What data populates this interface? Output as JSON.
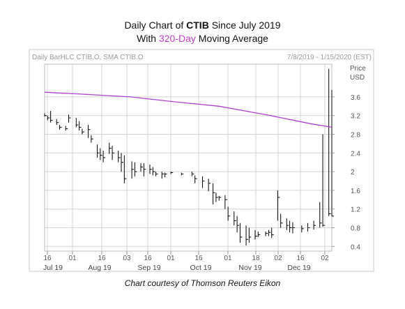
{
  "title": {
    "line1_prefix": "Daily Chart of",
    "line1_ticker": "CTIB",
    "line1_suffix": "Since July 2019",
    "line2_prefix": "With",
    "line2_highlight": "320-Day",
    "line2_suffix": "Moving Average"
  },
  "chart_header": {
    "left": "Daily BarHLC CTIB.O, SMA CTIB.O",
    "right": "7/8/2019 - 1/15/2020 (EST)"
  },
  "caption": "Chart courtesy of Thomson Reuters Eikon",
  "colors": {
    "sma": "#b040d0",
    "bars": "#000000",
    "grid": "#d4d4d4",
    "frame": "#c8c8c8"
  },
  "chart_data": {
    "type": "bar",
    "title": "Daily Chart of CTIB Since July 2019",
    "subtitle": "With 320-Day Moving Average",
    "ylabel": "Price USD",
    "ylim": [
      0.3,
      4.3
    ],
    "yticks": [
      "0.4",
      "0.8",
      "1.2",
      "1.6",
      "2",
      "2.4",
      "2.8",
      "3.2",
      "3.6"
    ],
    "x_day_ticks": [
      "16",
      "01",
      "16",
      "03",
      "16",
      "01",
      "16",
      "01",
      "18",
      "02",
      "16",
      "02"
    ],
    "x_month_labels": [
      "Jul 19",
      "Aug 19",
      "Sep 19",
      "Oct 19",
      "Nov 19",
      "Dec 19"
    ],
    "x_range": [
      "2019-07-08",
      "2020-01-15"
    ],
    "grid": true,
    "series": [
      {
        "name": "CTIB.O",
        "kind": "ohlc",
        "x": [
          "2019-07-08",
          "2019-07-10",
          "2019-07-12",
          "2019-07-16",
          "2019-07-18",
          "2019-07-22",
          "2019-07-24",
          "2019-07-29",
          "2019-07-31",
          "2019-08-02",
          "2019-08-06",
          "2019-08-08",
          "2019-08-12",
          "2019-08-14",
          "2019-08-16",
          "2019-08-20",
          "2019-08-22",
          "2019-08-26",
          "2019-08-28",
          "2019-08-30",
          "2019-09-04",
          "2019-09-06",
          "2019-09-10",
          "2019-09-12",
          "2019-09-16",
          "2019-09-18",
          "2019-09-20",
          "2019-09-24",
          "2019-09-26",
          "2019-09-30",
          "2019-10-07",
          "2019-10-14",
          "2019-10-16",
          "2019-10-21",
          "2019-10-25",
          "2019-10-28",
          "2019-10-30",
          "2019-11-01",
          "2019-11-05",
          "2019-11-07",
          "2019-11-11",
          "2019-11-13",
          "2019-11-15",
          "2019-11-19",
          "2019-11-21",
          "2019-11-25",
          "2019-11-27",
          "2019-12-02",
          "2019-12-04",
          "2019-12-06",
          "2019-12-10",
          "2019-12-12",
          "2019-12-16",
          "2019-12-18",
          "2019-12-20",
          "2019-12-26",
          "2019-12-30",
          "2020-01-03",
          "2020-01-07",
          "2020-01-09",
          "2020-01-13",
          "2020-01-15"
        ],
        "high": [
          3.25,
          3.2,
          3.3,
          3.12,
          3.0,
          2.98,
          3.22,
          3.15,
          3.08,
          2.92,
          3.0,
          2.78,
          2.58,
          2.5,
          2.45,
          2.62,
          2.55,
          2.45,
          2.4,
          2.35,
          2.22,
          2.2,
          2.18,
          2.18,
          2.15,
          2.1,
          2.0,
          2.0,
          1.98,
          2.0,
          1.98,
          2.0,
          1.92,
          1.9,
          1.85,
          1.75,
          1.55,
          1.48,
          1.5,
          1.25,
          1.15,
          1.05,
          0.9,
          0.85,
          0.8,
          0.75,
          0.72,
          0.72,
          0.75,
          0.8,
          1.6,
          1.1,
          1.0,
          0.95,
          0.92,
          0.85,
          0.9,
          0.95,
          1.35,
          2.8,
          4.2,
          3.75
        ],
        "low": [
          3.18,
          3.1,
          3.05,
          3.0,
          2.9,
          2.88,
          3.05,
          2.95,
          2.88,
          2.8,
          2.72,
          2.62,
          2.3,
          2.25,
          2.2,
          2.38,
          2.25,
          2.2,
          2.0,
          1.75,
          1.85,
          1.9,
          2.0,
          1.9,
          1.95,
          1.92,
          1.9,
          1.85,
          1.88,
          1.95,
          1.92,
          1.9,
          1.75,
          1.65,
          1.58,
          1.3,
          1.35,
          1.38,
          1.2,
          0.95,
          0.85,
          0.7,
          0.48,
          0.42,
          0.48,
          0.55,
          0.6,
          0.62,
          0.62,
          0.58,
          0.95,
          0.8,
          0.75,
          0.7,
          0.68,
          0.7,
          0.72,
          0.76,
          0.8,
          0.82,
          1.05,
          1.05
        ],
        "close": [
          3.2,
          3.15,
          3.1,
          3.05,
          2.95,
          2.92,
          3.15,
          3.0,
          2.95,
          2.85,
          2.9,
          2.7,
          2.4,
          2.35,
          2.3,
          2.5,
          2.4,
          2.3,
          2.2,
          1.85,
          2.05,
          2.0,
          2.1,
          2.05,
          2.05,
          2.0,
          1.95,
          1.95,
          1.95,
          1.98,
          1.95,
          1.95,
          1.85,
          1.8,
          1.75,
          1.55,
          1.45,
          1.45,
          1.4,
          1.05,
          0.95,
          0.85,
          0.6,
          0.55,
          0.6,
          0.62,
          0.65,
          0.68,
          0.7,
          0.65,
          1.45,
          0.9,
          0.85,
          0.8,
          0.8,
          0.78,
          0.8,
          0.85,
          0.9,
          0.85,
          1.1,
          1.05
        ]
      },
      {
        "name": "SMA 320",
        "kind": "line",
        "x": [
          "2019-07-08",
          "2019-08-01",
          "2019-09-03",
          "2019-10-01",
          "2019-11-01",
          "2019-12-02",
          "2020-01-02",
          "2020-01-15"
        ],
        "values": [
          3.7,
          3.66,
          3.6,
          3.5,
          3.4,
          3.22,
          3.02,
          2.95
        ]
      }
    ]
  }
}
